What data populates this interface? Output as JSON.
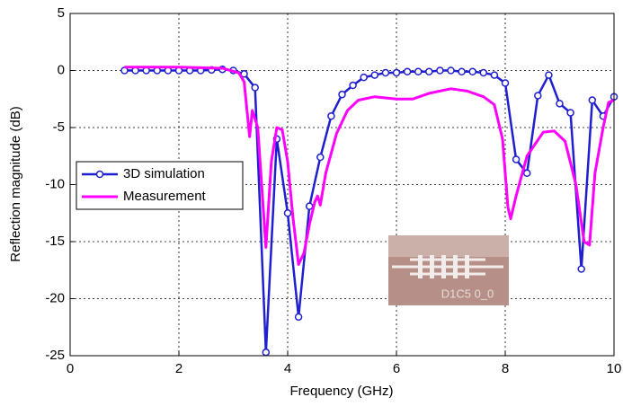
{
  "chart_data": {
    "type": "line",
    "xlabel": "Frequency (GHz)",
    "ylabel": "Reflection magnitude (dB)",
    "xlim": [
      0,
      10
    ],
    "ylim": [
      -25,
      5
    ],
    "xticks": [
      0,
      2,
      4,
      6,
      8,
      10
    ],
    "yticks": [
      5,
      0,
      -5,
      -10,
      -15,
      -20,
      -25
    ],
    "grid": true,
    "legend": "upper left",
    "annotation": "D1C5 0_0",
    "series": [
      {
        "name": "3D simulation",
        "color": "#1f1fd0",
        "markers": true,
        "x": [
          1.0,
          1.2,
          1.4,
          1.6,
          1.8,
          2.0,
          2.2,
          2.4,
          2.6,
          2.8,
          3.0,
          3.2,
          3.4,
          3.6,
          3.8,
          4.0,
          4.2,
          4.4,
          4.6,
          4.8,
          5.0,
          5.2,
          5.4,
          5.6,
          5.8,
          6.0,
          6.2,
          6.4,
          6.6,
          6.8,
          7.0,
          7.2,
          7.4,
          7.6,
          7.8,
          8.0,
          8.2,
          8.4,
          8.6,
          8.8,
          9.0,
          9.2,
          9.4,
          9.6,
          9.8,
          10.0
        ],
        "values": [
          0,
          0,
          0,
          0,
          0,
          0,
          0,
          0,
          0.05,
          0.1,
          0,
          -0.3,
          -1.5,
          -24.7,
          -6,
          -12.5,
          -21.6,
          -11.9,
          -7.6,
          -4,
          -2.1,
          -1.3,
          -0.6,
          -0.4,
          -0.2,
          -0.2,
          -0.1,
          -0.1,
          -0.1,
          0,
          0,
          -0.1,
          -0.1,
          -0.2,
          -0.4,
          -1.1,
          -7.8,
          -9,
          -2.2,
          -0.4,
          -2.9,
          -3.7,
          -17.4,
          -2.6,
          -4,
          -2.3
        ]
      },
      {
        "name": "Measurement",
        "color": "#ff00ff",
        "markers": false,
        "x": [
          1.0,
          2.0,
          2.8,
          3.1,
          3.2,
          3.3,
          3.35,
          3.45,
          3.55,
          3.6,
          3.7,
          3.8,
          3.9,
          4.0,
          4.1,
          4.2,
          4.3,
          4.4,
          4.5,
          4.55,
          4.6,
          4.7,
          4.9,
          5.1,
          5.3,
          5.6,
          6.0,
          6.3,
          6.6,
          7.0,
          7.3,
          7.6,
          7.8,
          7.95,
          8.05,
          8.1,
          8.2,
          8.4,
          8.7,
          8.9,
          9.1,
          9.3,
          9.45,
          9.55,
          9.65,
          9.8,
          9.9,
          10.0
        ],
        "values": [
          0.3,
          0.3,
          0.2,
          -0.2,
          -1,
          -5.8,
          -3.5,
          -5,
          -12,
          -15.5,
          -8,
          -5,
          -5.2,
          -8,
          -13,
          -17,
          -16,
          -13.5,
          -11.5,
          -11,
          -11.8,
          -9,
          -5.5,
          -3.5,
          -2.6,
          -2.3,
          -2.5,
          -2.5,
          -2,
          -1.6,
          -1.8,
          -2.3,
          -3,
          -6,
          -12,
          -13,
          -11,
          -7.5,
          -5.4,
          -5.3,
          -6.2,
          -10,
          -15,
          -15.3,
          -9,
          -5,
          -2.8,
          -2.6
        ]
      }
    ]
  }
}
